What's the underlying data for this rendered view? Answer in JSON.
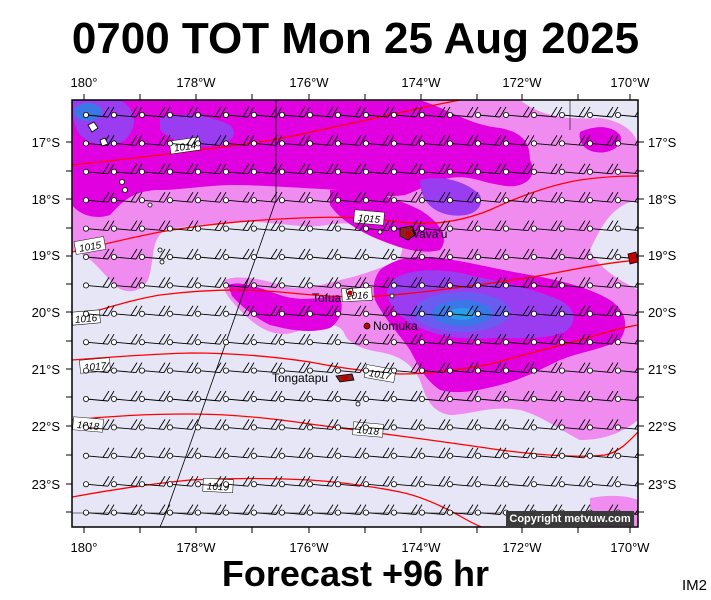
{
  "title": "0700 TOT Mon 25 Aug 2025",
  "footer": "Forecast +96 hr",
  "image_code": "IM2",
  "copyright": "Copyright metvuw.com",
  "lon_ticks": [
    "180°",
    "178°W",
    "176°W",
    "174°W",
    "172°W",
    "170°W"
  ],
  "lat_ticks": [
    "17°S",
    "18°S",
    "19°S",
    "20°S",
    "21°S",
    "22°S",
    "23°S"
  ],
  "places": [
    {
      "name": "Vava'u"
    },
    {
      "name": "Tofua"
    },
    {
      "name": "Nomuka"
    },
    {
      "name": "Tongatapu"
    }
  ],
  "isobar_labels": [
    "1014",
    "1015",
    "1015",
    "1016",
    "1016",
    "1016",
    "1017",
    "1017",
    "1018",
    "1018",
    "1019"
  ],
  "colors": {
    "background": "#e6e6f6",
    "precip_light": "#f08cf0",
    "precip_mid": "#e000e0",
    "precip_heavy": "#9a3cf0",
    "precip_core": "#3a78e8",
    "isobar": "#ff0000",
    "land": "#ffffff"
  }
}
